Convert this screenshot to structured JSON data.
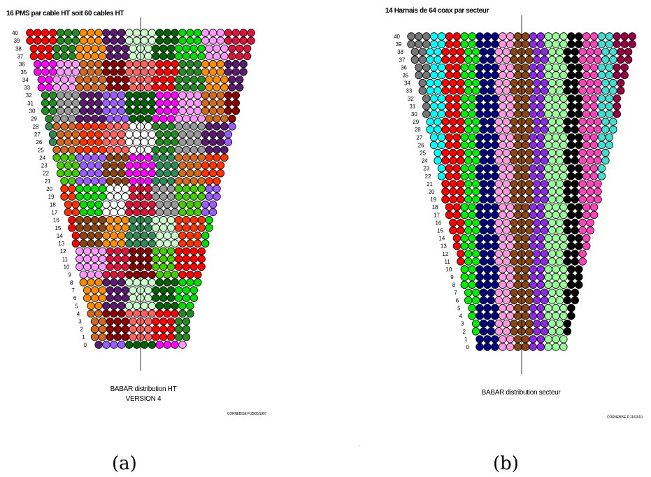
{
  "panel_a": {
    "title": "16 PMS par cable HT soit 60 cables HT",
    "caption_line1": "BABAR  distribution HT",
    "caption_line2": "VERSION 4",
    "stamp": "CORNEBISE P 25/05/1997",
    "sublabel": "(a)",
    "row_labels": [
      "0",
      "1",
      "2",
      "3",
      "4",
      "5",
      "6",
      "7",
      "8",
      "9",
      "10",
      "11",
      "12",
      "13",
      "14",
      "15",
      "16",
      "17",
      "18",
      "19",
      "20",
      "21",
      "22",
      "23",
      "24",
      "25",
      "26",
      "27",
      "28",
      "29",
      "30",
      "31",
      "32",
      "33",
      "34",
      "35",
      "36",
      "37",
      "38",
      "39",
      "40"
    ],
    "palette": [
      "#ff0000",
      "#ffff00",
      "#00dd00",
      "#fffacd",
      "#8b4513",
      "#0000ff",
      "#ffffff",
      "#000066",
      "#ff00ff",
      "#000000",
      "#228b22",
      "#1e5aa0",
      "#ff99ff",
      "#a0522d",
      "#ff8c00",
      "#c0c0ff",
      "#dc143c",
      "#b0ffff",
      "#2e8b57",
      "#ffb07a",
      "#999999",
      "#6b3a10",
      "#d2691e",
      "#ffff88",
      "#5a1a70",
      "#6699cc",
      "#8b0000",
      "#c8a0ff",
      "#ccffcc",
      "#00bbbb",
      "#44cc00",
      "#4040ff",
      "#ff3300",
      "#ffd0a0",
      "#9b5cff",
      "#808000",
      "#ff6060",
      "#00ffff",
      "#006400",
      "#ffd700"
    ]
  },
  "panel_b": {
    "title": "14 Harnais de 64 coax par secteur",
    "caption": "BABAR  distribution secteur",
    "stamp": "CORNEBISE P 11/03/19",
    "sublabel": "(b)",
    "row_labels": [
      "0",
      "1",
      "2",
      "3",
      "4",
      "5",
      "6",
      "7",
      "8",
      "9",
      "10",
      "11",
      "12",
      "13",
      "14",
      "15",
      "16",
      "17",
      "18",
      "19",
      "20",
      "21",
      "22",
      "23",
      "24",
      "25",
      "26",
      "27",
      "28",
      "29",
      "30",
      "31",
      "32",
      "33",
      "34",
      "35",
      "36",
      "37",
      "38",
      "39",
      "40"
    ],
    "palette": [
      "#777777",
      "#00ffff",
      "#ff0000",
      "#00ee00",
      "#000080",
      "#ff99dd",
      "#8b4513",
      "#8a2be2",
      "#99ff99",
      "#000000",
      "#ff44bb",
      "#40e0d0",
      "#990044"
    ]
  }
}
